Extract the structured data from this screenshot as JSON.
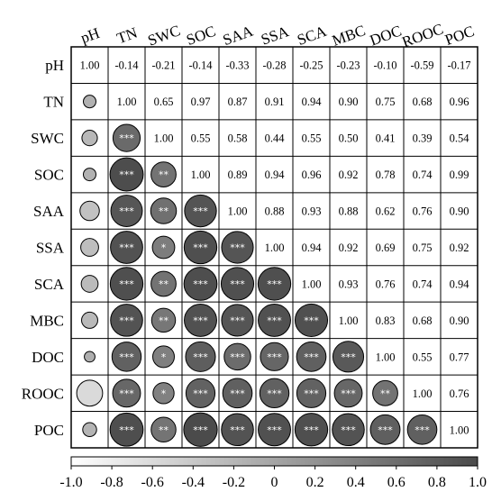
{
  "chart_data": {
    "type": "heatmap",
    "variables": [
      "pH",
      "TN",
      "SWC",
      "SOC",
      "SAA",
      "SSA",
      "SCA",
      "MBC",
      "DOC",
      "ROOC",
      "POC"
    ],
    "upper_triangle_values": [
      [
        1.0,
        -0.14,
        -0.21,
        -0.14,
        -0.33,
        -0.28,
        -0.25,
        -0.23,
        -0.1,
        -0.59,
        -0.17
      ],
      [
        1.0,
        0.65,
        0.97,
        0.87,
        0.91,
        0.94,
        0.9,
        0.75,
        0.68,
        0.96
      ],
      [
        1.0,
        0.55,
        0.58,
        0.44,
        0.55,
        0.5,
        0.41,
        0.39,
        0.54
      ],
      [
        1.0,
        0.89,
        0.94,
        0.96,
        0.92,
        0.78,
        0.74,
        0.99
      ],
      [
        1.0,
        0.88,
        0.93,
        0.88,
        0.62,
        0.76,
        0.9
      ],
      [
        1.0,
        0.94,
        0.92,
        0.69,
        0.75,
        0.92
      ],
      [
        1.0,
        0.93,
        0.76,
        0.74,
        0.94
      ],
      [
        1.0,
        0.83,
        0.68,
        0.9
      ],
      [
        1.0,
        0.55,
        0.77
      ],
      [
        1.0,
        0.76
      ],
      [
        1.0
      ]
    ],
    "lower_triangle_significance": [
      [],
      [
        ""
      ],
      [
        "",
        "***"
      ],
      [
        "",
        "***",
        "**"
      ],
      [
        "",
        "***",
        "**",
        "***"
      ],
      [
        "",
        "***",
        "*",
        "***",
        "***"
      ],
      [
        "",
        "***",
        "**",
        "***",
        "***",
        "***"
      ],
      [
        "",
        "***",
        "**",
        "***",
        "***",
        "***",
        "***"
      ],
      [
        "",
        "***",
        "*",
        "***",
        "***",
        "***",
        "***",
        "***"
      ],
      [
        "",
        "***",
        "*",
        "***",
        "***",
        "***",
        "***",
        "***",
        "**"
      ],
      [
        "",
        "***",
        "**",
        "***",
        "***",
        "***",
        "***",
        "***",
        "***",
        "***"
      ]
    ],
    "colorbar": {
      "range": [
        -1.0,
        1.0
      ],
      "ticks": [
        "-1.0",
        "-0.8",
        "-0.6",
        "-0.4",
        "-0.2",
        "0",
        "0.2",
        "0.4",
        "0.6",
        "0.8",
        "1.0"
      ],
      "color_low": "#ffffff",
      "color_high": "#4a4a4a"
    },
    "legend_placement": "bottom"
  }
}
